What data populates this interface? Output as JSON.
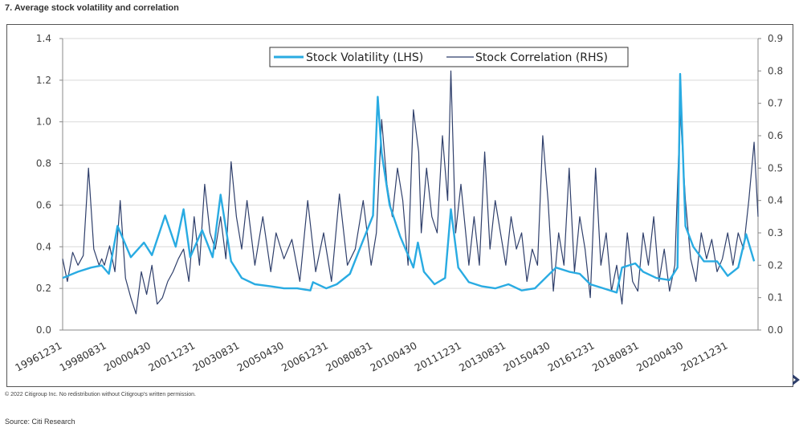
{
  "header": {
    "title": "7. Average stock volatility and correlation"
  },
  "footer": {
    "copyright": "© 2022 Citigroup Inc. No redistribution without Citigroup's written permission.",
    "source": "Source: Citi Research"
  },
  "icons": {
    "nav": "chevron-right-icon"
  },
  "colors": {
    "volatility": "#29ABE2",
    "correlation": "#2F3F6B",
    "grid": "#d9d9d9"
  },
  "chart_data": {
    "type": "line",
    "title": "",
    "legend": {
      "placement": "top-center"
    },
    "grid": true,
    "left_axis": {
      "ylim": [
        0,
        1.4
      ],
      "ticks": [
        "0.0",
        "0.2",
        "0.4",
        "0.6",
        "0.8",
        "1.0",
        "1.2",
        "1.4"
      ]
    },
    "right_axis": {
      "ylim": [
        0,
        0.9
      ],
      "ticks": [
        "0.0",
        "0.1",
        "0.2",
        "0.3",
        "0.4",
        "0.5",
        "0.6",
        "0.7",
        "0.8",
        "0.9"
      ]
    },
    "x_tick_labels": [
      "19961231",
      "19980831",
      "20000430",
      "20011231",
      "20030831",
      "20050430",
      "20061231",
      "20080831",
      "20100430",
      "20111231",
      "20130831",
      "20150430",
      "20161231",
      "20180831",
      "20200430",
      "20211231"
    ],
    "x_range": [
      1996.92,
      2023.25
    ],
    "series": [
      {
        "name": "Stock Volatility (LHS)",
        "axis": "left",
        "x": [
          1996.92,
          1997.5,
          1998.0,
          1998.4,
          1998.67,
          1999.0,
          1999.5,
          2000.0,
          2000.3,
          2000.8,
          2001.2,
          2001.5,
          2001.75,
          2002.2,
          2002.6,
          2002.9,
          2003.3,
          2003.7,
          2004.2,
          2004.8,
          2005.3,
          2005.8,
          2006.3,
          2006.4,
          2006.9,
          2007.3,
          2007.8,
          2008.2,
          2008.67,
          2008.85,
          2009.0,
          2009.3,
          2009.7,
          2010.2,
          2010.37,
          2010.6,
          2011.0,
          2011.4,
          2011.62,
          2011.9,
          2012.3,
          2012.8,
          2013.3,
          2013.8,
          2014.3,
          2014.8,
          2015.2,
          2015.6,
          2016.1,
          2016.5,
          2016.9,
          2017.4,
          2017.9,
          2018.1,
          2018.6,
          2018.9,
          2019.4,
          2019.9,
          2020.2,
          2020.3,
          2020.5,
          2020.8,
          2021.2,
          2021.7,
          2022.1,
          2022.5,
          2022.8,
          2023.1
        ],
        "values": [
          0.25,
          0.28,
          0.3,
          0.31,
          0.27,
          0.5,
          0.35,
          0.42,
          0.36,
          0.55,
          0.4,
          0.58,
          0.35,
          0.48,
          0.35,
          0.65,
          0.33,
          0.25,
          0.22,
          0.21,
          0.2,
          0.2,
          0.19,
          0.23,
          0.2,
          0.22,
          0.27,
          0.4,
          0.55,
          1.12,
          0.85,
          0.6,
          0.45,
          0.3,
          0.42,
          0.28,
          0.22,
          0.25,
          0.58,
          0.3,
          0.23,
          0.21,
          0.2,
          0.22,
          0.19,
          0.2,
          0.25,
          0.3,
          0.28,
          0.27,
          0.22,
          0.2,
          0.18,
          0.3,
          0.32,
          0.28,
          0.25,
          0.24,
          0.3,
          1.23,
          0.5,
          0.4,
          0.33,
          0.33,
          0.26,
          0.3,
          0.46,
          0.33
        ]
      },
      {
        "name": "Stock Correlation (RHS)",
        "axis": "right",
        "x": [
          1996.92,
          1997.1,
          1997.3,
          1997.5,
          1997.7,
          1997.9,
          1998.1,
          1998.3,
          1998.4,
          1998.5,
          1998.7,
          1998.9,
          1999.1,
          1999.3,
          1999.5,
          1999.7,
          1999.9,
          2000.1,
          2000.3,
          2000.5,
          2000.7,
          2000.9,
          2001.1,
          2001.3,
          2001.5,
          2001.7,
          2001.9,
          2002.1,
          2002.3,
          2002.5,
          2002.7,
          2002.9,
          2003.1,
          2003.3,
          2003.5,
          2003.7,
          2003.9,
          2004.2,
          2004.5,
          2004.8,
          2005.0,
          2005.3,
          2005.6,
          2005.9,
          2006.2,
          2006.5,
          2006.8,
          2007.1,
          2007.4,
          2007.7,
          2008.0,
          2008.3,
          2008.6,
          2008.8,
          2009.0,
          2009.2,
          2009.4,
          2009.6,
          2009.8,
          2010.0,
          2010.2,
          2010.4,
          2010.5,
          2010.7,
          2010.9,
          2011.1,
          2011.3,
          2011.5,
          2011.62,
          2011.8,
          2012.0,
          2012.3,
          2012.5,
          2012.7,
          2012.9,
          2013.1,
          2013.3,
          2013.5,
          2013.7,
          2013.9,
          2014.1,
          2014.3,
          2014.5,
          2014.7,
          2014.9,
          2015.1,
          2015.3,
          2015.5,
          2015.7,
          2015.9,
          2016.1,
          2016.3,
          2016.5,
          2016.7,
          2016.9,
          2017.1,
          2017.3,
          2017.5,
          2017.7,
          2017.9,
          2018.1,
          2018.3,
          2018.5,
          2018.7,
          2018.9,
          2019.1,
          2019.3,
          2019.5,
          2019.7,
          2019.9,
          2020.1,
          2020.3,
          2020.5,
          2020.7,
          2020.9,
          2021.1,
          2021.3,
          2021.5,
          2021.7,
          2021.9,
          2022.1,
          2022.3,
          2022.5,
          2022.7,
          2022.9,
          2023.1,
          2023.25
        ],
        "values": [
          0.22,
          0.15,
          0.24,
          0.2,
          0.23,
          0.5,
          0.25,
          0.2,
          0.22,
          0.2,
          0.26,
          0.18,
          0.4,
          0.16,
          0.1,
          0.05,
          0.18,
          0.11,
          0.2,
          0.08,
          0.1,
          0.15,
          0.18,
          0.22,
          0.25,
          0.15,
          0.35,
          0.2,
          0.45,
          0.3,
          0.25,
          0.35,
          0.22,
          0.52,
          0.35,
          0.25,
          0.4,
          0.2,
          0.35,
          0.18,
          0.3,
          0.22,
          0.28,
          0.15,
          0.4,
          0.18,
          0.3,
          0.15,
          0.42,
          0.2,
          0.25,
          0.4,
          0.2,
          0.3,
          0.65,
          0.45,
          0.35,
          0.5,
          0.4,
          0.2,
          0.68,
          0.55,
          0.3,
          0.5,
          0.35,
          0.3,
          0.6,
          0.4,
          0.8,
          0.3,
          0.45,
          0.2,
          0.35,
          0.2,
          0.55,
          0.25,
          0.4,
          0.3,
          0.2,
          0.35,
          0.25,
          0.3,
          0.15,
          0.25,
          0.2,
          0.6,
          0.4,
          0.12,
          0.3,
          0.2,
          0.5,
          0.18,
          0.35,
          0.25,
          0.1,
          0.5,
          0.2,
          0.3,
          0.12,
          0.2,
          0.08,
          0.3,
          0.15,
          0.12,
          0.3,
          0.2,
          0.35,
          0.15,
          0.25,
          0.12,
          0.2,
          0.68,
          0.4,
          0.22,
          0.15,
          0.3,
          0.22,
          0.28,
          0.18,
          0.22,
          0.3,
          0.2,
          0.3,
          0.25,
          0.4,
          0.58,
          0.35
        ]
      }
    ]
  }
}
